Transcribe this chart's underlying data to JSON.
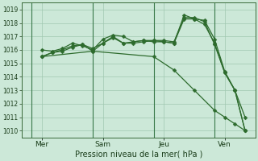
{
  "xlabel": "Pression niveau de la mer( hPa )",
  "bg_color": "#cce8d8",
  "grid_color": "#a0c8b0",
  "line_color": "#2d6b2d",
  "ylim": [
    1009.5,
    1019.5
  ],
  "yticks": [
    1010,
    1011,
    1012,
    1013,
    1014,
    1015,
    1016,
    1017,
    1018,
    1019
  ],
  "xlim": [
    -0.5,
    11.0
  ],
  "day_labels": [
    "Mer",
    "Sam",
    "Jeu",
    "Ven"
  ],
  "day_positions": [
    0.5,
    3.5,
    6.5,
    9.5
  ],
  "vline_positions": [
    0.0,
    3.0,
    6.0,
    9.0
  ],
  "series1": {
    "x": [
      0.5,
      1.0,
      1.5,
      2.0,
      2.5,
      3.0,
      3.5,
      4.0,
      4.5,
      5.0,
      5.5,
      6.0,
      6.5,
      7.0,
      7.5,
      8.0,
      8.5,
      9.0,
      9.5,
      10.0,
      10.5
    ],
    "y": [
      1016.0,
      1015.9,
      1016.1,
      1016.5,
      1016.3,
      1016.0,
      1016.8,
      1017.1,
      1017.0,
      1016.6,
      1016.7,
      1016.6,
      1016.6,
      1016.5,
      1018.3,
      1018.3,
      1018.2,
      1016.8,
      1014.4,
      1013.0,
      1011.0
    ]
  },
  "series2": {
    "x": [
      0.5,
      1.0,
      1.5,
      2.0,
      2.5,
      3.0,
      3.5,
      4.0,
      4.5,
      5.0,
      5.5,
      6.0,
      6.5,
      7.0,
      7.5,
      8.0,
      8.5,
      9.0,
      9.5,
      10.0,
      10.5
    ],
    "y": [
      1015.5,
      1015.8,
      1016.0,
      1016.3,
      1016.4,
      1015.9,
      1016.5,
      1016.9,
      1016.5,
      1016.5,
      1016.6,
      1016.7,
      1016.6,
      1016.5,
      1018.6,
      1018.3,
      1017.9,
      1016.5,
      1014.3,
      1013.0,
      1010.0
    ]
  },
  "series3": {
    "x": [
      0.5,
      1.0,
      1.5,
      2.0,
      2.5,
      3.0,
      3.5,
      4.0,
      4.5,
      5.0,
      5.5,
      6.0,
      6.5,
      7.0,
      7.5,
      8.0,
      8.5,
      9.0,
      9.5,
      10.0,
      10.5
    ],
    "y": [
      1015.5,
      1015.8,
      1015.9,
      1016.2,
      1016.4,
      1016.1,
      1016.5,
      1017.0,
      1016.5,
      1016.6,
      1016.7,
      1016.7,
      1016.7,
      1016.6,
      1018.4,
      1018.4,
      1018.1,
      1016.4,
      1014.3,
      1013.0,
      1010.0
    ]
  },
  "series_low": {
    "x": [
      0.5,
      3.0,
      6.0,
      7.0,
      8.0,
      9.0,
      9.5,
      10.0,
      10.5
    ],
    "y": [
      1015.5,
      1015.9,
      1015.5,
      1014.5,
      1013.0,
      1011.5,
      1011.0,
      1010.5,
      1010.0
    ]
  }
}
